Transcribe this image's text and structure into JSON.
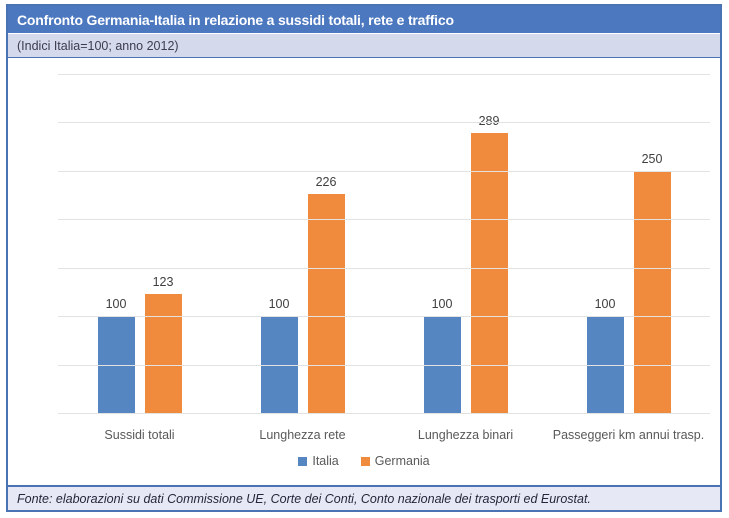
{
  "header": {
    "title": "Confronto Germania-Italia in relazione a sussidi totali, rete e traffico",
    "subtitle": "(Indici Italia=100; anno 2012)"
  },
  "footer": {
    "source": "Fonte: elaborazioni su dati Commissione UE, Corte dei Conti, Conto nazionale dei trasporti ed Eurostat."
  },
  "colors": {
    "header_bg": "#4c78c0",
    "subtitle_bg": "#d4d9ec",
    "footer_bg": "#e6e9f5",
    "frame_border": "#4a73b4",
    "gridline": "#e2e2e2",
    "axis_text": "#595959",
    "data_label_text": "#404040",
    "italia_bar": "#5586c2",
    "germania_bar": "#f08a3c"
  },
  "chart_data": {
    "type": "bar",
    "title": "Confronto Germania-Italia in relazione a sussidi totali, rete e traffico",
    "subtitle": "(Indici Italia=100; anno 2012)",
    "categories": [
      "Sussidi totali",
      "Lunghezza rete",
      "Lunghezza binari",
      "Passeggeri km annui trasp."
    ],
    "series": [
      {
        "name": "Italia",
        "color": "#5586c2",
        "values": [
          100,
          100,
          100,
          100
        ]
      },
      {
        "name": "Germania",
        "color": "#f08a3c",
        "values": [
          123,
          226,
          289,
          250
        ]
      }
    ],
    "ylim": [
      0,
      350
    ],
    "ytick_step": 50,
    "yticks": [
      0,
      50,
      100,
      150,
      200,
      250,
      300,
      350
    ],
    "grid": true,
    "data_labels": true,
    "legend_position": "bottom"
  }
}
